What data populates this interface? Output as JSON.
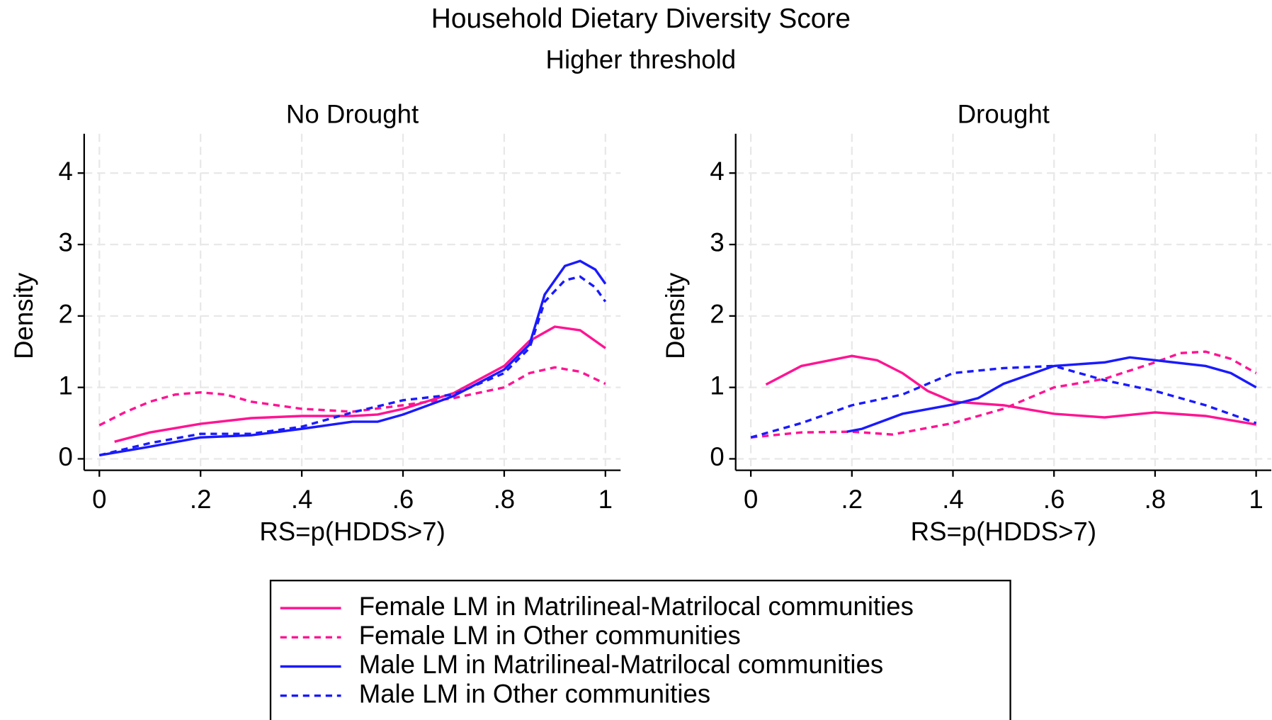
{
  "title": "Household Dietary Diversity Score",
  "subtitle": "Higher threshold",
  "chart_data": [
    {
      "type": "line",
      "title": "No Drought",
      "x_label": "RS=p(HDDS>7)",
      "y_label": "Density",
      "xlim": [
        -0.03,
        1.03
      ],
      "ylim": [
        -0.16,
        4.55
      ],
      "xticks": [
        0,
        {
          "value": 0.2,
          "label": ".2"
        },
        {
          "value": 0.4,
          "label": ".4"
        },
        {
          "value": 0.6,
          "label": ".6"
        },
        {
          "value": 0.8,
          "label": ".8"
        },
        1
      ],
      "yticks": [
        0,
        1,
        2,
        3,
        4
      ],
      "grid": true,
      "series": [
        {
          "name": "Female LM in Matrilineal-Matrilocal communities",
          "color": "#ff1493",
          "dashed": false,
          "x": [
            0.03,
            0.1,
            0.2,
            0.3,
            0.4,
            0.5,
            0.55,
            0.6,
            0.7,
            0.8,
            0.85,
            0.9,
            0.95,
            1.0
          ],
          "values": [
            0.24,
            0.37,
            0.49,
            0.57,
            0.6,
            0.6,
            0.62,
            0.7,
            0.92,
            1.3,
            1.65,
            1.85,
            1.8,
            1.55
          ]
        },
        {
          "name": "Female LM in Other communities",
          "color": "#ff1493",
          "dashed": true,
          "x": [
            0,
            0.05,
            0.1,
            0.15,
            0.2,
            0.25,
            0.3,
            0.4,
            0.5,
            0.6,
            0.7,
            0.8,
            0.85,
            0.9,
            0.95,
            1.0
          ],
          "values": [
            0.47,
            0.65,
            0.8,
            0.9,
            0.93,
            0.9,
            0.8,
            0.7,
            0.66,
            0.75,
            0.85,
            1.0,
            1.2,
            1.28,
            1.22,
            1.05
          ]
        },
        {
          "name": "Male LM in Matrilineal-Matrilocal communities",
          "color": "#1a1aff",
          "dashed": false,
          "x": [
            0,
            0.1,
            0.2,
            0.3,
            0.4,
            0.5,
            0.55,
            0.6,
            0.7,
            0.8,
            0.85,
            0.88,
            0.92,
            0.95,
            0.98,
            1.0
          ],
          "values": [
            0.05,
            0.17,
            0.3,
            0.33,
            0.42,
            0.52,
            0.52,
            0.62,
            0.88,
            1.25,
            1.6,
            2.3,
            2.7,
            2.77,
            2.65,
            2.45
          ]
        },
        {
          "name": "Male LM in Other communities",
          "color": "#1a1aff",
          "dashed": true,
          "x": [
            0,
            0.1,
            0.2,
            0.3,
            0.4,
            0.5,
            0.6,
            0.7,
            0.8,
            0.85,
            0.88,
            0.92,
            0.95,
            0.98,
            1.0
          ],
          "values": [
            0.05,
            0.22,
            0.35,
            0.35,
            0.45,
            0.65,
            0.82,
            0.9,
            1.2,
            1.55,
            2.2,
            2.5,
            2.55,
            2.4,
            2.2
          ]
        }
      ]
    },
    {
      "type": "line",
      "title": "Drought",
      "x_label": "RS=p(HDDS>7)",
      "y_label": "Density",
      "xlim": [
        -0.03,
        1.03
      ],
      "ylim": [
        -0.16,
        4.55
      ],
      "xticks": [
        0,
        {
          "value": 0.2,
          "label": ".2"
        },
        {
          "value": 0.4,
          "label": ".4"
        },
        {
          "value": 0.6,
          "label": ".6"
        },
        {
          "value": 0.8,
          "label": ".8"
        },
        1
      ],
      "yticks": [
        0,
        1,
        2,
        3,
        4
      ],
      "grid": true,
      "series": [
        {
          "color": "#ff1493",
          "dashed": false,
          "x": [
            0.03,
            0.1,
            0.2,
            0.25,
            0.3,
            0.35,
            0.4,
            0.5,
            0.6,
            0.7,
            0.8,
            0.9,
            1.0
          ],
          "values": [
            1.04,
            1.3,
            1.44,
            1.38,
            1.2,
            0.95,
            0.8,
            0.75,
            0.63,
            0.58,
            0.65,
            0.6,
            0.48
          ]
        },
        {
          "color": "#ff1493",
          "dashed": true,
          "x": [
            0,
            0.1,
            0.2,
            0.28,
            0.4,
            0.5,
            0.6,
            0.7,
            0.8,
            0.85,
            0.9,
            0.95,
            1.0
          ],
          "values": [
            0.3,
            0.37,
            0.38,
            0.34,
            0.5,
            0.7,
            1.0,
            1.12,
            1.35,
            1.48,
            1.5,
            1.4,
            1.2
          ]
        },
        {
          "color": "#1a1aff",
          "dashed": false,
          "x": [
            0.19,
            0.22,
            0.3,
            0.4,
            0.45,
            0.5,
            0.6,
            0.7,
            0.75,
            0.8,
            0.9,
            0.95,
            1.0
          ],
          "values": [
            0.38,
            0.42,
            0.63,
            0.76,
            0.85,
            1.05,
            1.3,
            1.35,
            1.42,
            1.38,
            1.3,
            1.2,
            1.0
          ]
        },
        {
          "color": "#1a1aff",
          "dashed": true,
          "x": [
            0,
            0.1,
            0.2,
            0.3,
            0.4,
            0.5,
            0.6,
            0.7,
            0.8,
            0.9,
            1.0
          ],
          "values": [
            0.3,
            0.5,
            0.75,
            0.9,
            1.2,
            1.27,
            1.3,
            1.1,
            0.95,
            0.75,
            0.5
          ]
        }
      ]
    }
  ]
}
